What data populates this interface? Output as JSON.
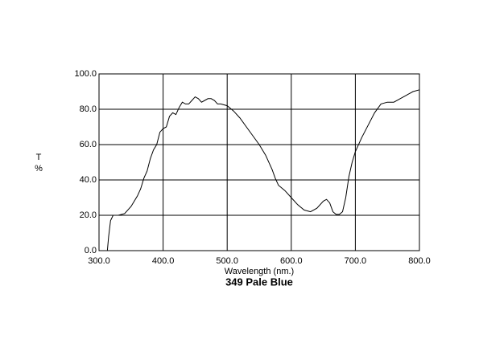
{
  "chart_data": {
    "type": "line",
    "title": "349 Pale Blue",
    "x_label": "Wavelength (nm.)",
    "y_label_lines": [
      "T",
      "%"
    ],
    "x": [
      310,
      313,
      315,
      318,
      322,
      330,
      340,
      350,
      360,
      365,
      370,
      375,
      380,
      385,
      390,
      395,
      400,
      405,
      410,
      415,
      420,
      425,
      430,
      435,
      440,
      445,
      450,
      455,
      460,
      465,
      470,
      475,
      480,
      485,
      490,
      500,
      510,
      520,
      530,
      540,
      550,
      560,
      570,
      575,
      580,
      590,
      600,
      610,
      620,
      630,
      640,
      650,
      655,
      660,
      665,
      670,
      675,
      680,
      685,
      690,
      695,
      700,
      710,
      720,
      730,
      740,
      750,
      760,
      770,
      780,
      790,
      800
    ],
    "series": [
      {
        "name": "349 Pale Blue",
        "color": "#000000",
        "values": [
          0,
          0,
          8,
          17,
          20,
          20,
          21,
          25,
          31,
          35,
          41,
          45,
          52,
          57,
          60,
          67,
          69,
          70,
          76,
          78,
          77,
          81,
          84,
          83,
          83,
          85,
          87,
          86,
          84,
          85,
          86,
          86,
          85,
          83,
          83,
          82,
          79,
          75,
          70,
          65,
          60,
          54,
          46,
          41,
          37,
          34,
          30,
          26,
          23,
          22,
          24,
          28,
          29,
          27,
          22,
          20.5,
          20.5,
          22,
          30,
          42,
          50,
          56,
          64,
          71,
          78,
          83,
          84,
          84,
          86,
          88,
          90,
          91
        ]
      }
    ],
    "xlim": [
      300,
      800
    ],
    "ylim": [
      0,
      100
    ],
    "xticks": [
      {
        "value": 300,
        "label": "300.0"
      },
      {
        "value": 400,
        "label": "400.0"
      },
      {
        "value": 500,
        "label": "500.0"
      },
      {
        "value": 600,
        "label": "600.0"
      },
      {
        "value": 700,
        "label": "700.0"
      },
      {
        "value": 800,
        "label": "800.0"
      }
    ],
    "yticks": [
      {
        "value": 0,
        "label": "0.0"
      },
      {
        "value": 20,
        "label": "20.0"
      },
      {
        "value": 40,
        "label": "40.0"
      },
      {
        "value": 60,
        "label": "60.0"
      },
      {
        "value": 80,
        "label": "80.0"
      },
      {
        "value": 100,
        "label": "100.0"
      }
    ],
    "grid": true
  }
}
